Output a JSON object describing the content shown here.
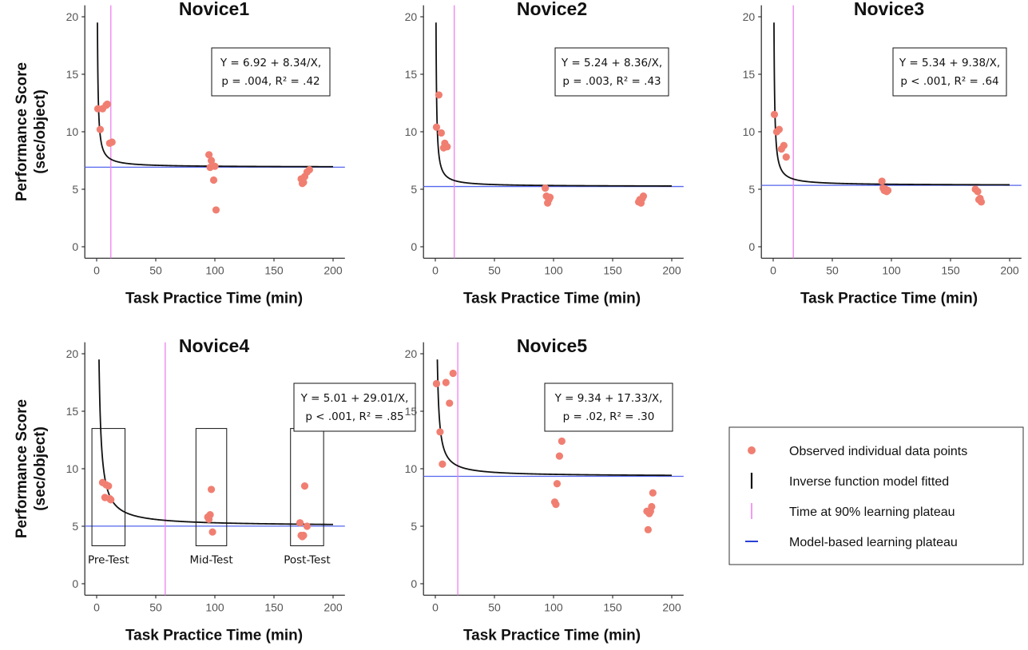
{
  "figure": {
    "xlabel": "Task Practice Time (min)",
    "ylabel_line1": "Performance Score",
    "ylabel_line2": "(sec/object)"
  },
  "legend": {
    "items": [
      {
        "label": "Observed individual data points",
        "kind": "point",
        "color": "#f07f72"
      },
      {
        "label": "Inverse function model fitted",
        "kind": "curve",
        "color": "#111111"
      },
      {
        "label": "Time at 90% learning plateau",
        "kind": "vline",
        "color": "#ee82ee"
      },
      {
        "label": "Model-based learning plateau",
        "kind": "hline",
        "color": "#2b3fd6"
      }
    ]
  },
  "colors": {
    "points": "#f07f72",
    "curve": "#111111",
    "plateau_time": "#ee82ee",
    "plateau_line": "#5566ee",
    "axis": "#333333"
  },
  "chart_data": [
    {
      "type": "scatter",
      "title": "Novice1",
      "xlabel": "Task Practice Time (min)",
      "ylabel": "Performance Score (sec/object)",
      "xlim": [
        -10,
        210
      ],
      "ylim": [
        -1,
        21
      ],
      "xticks": [
        0,
        50,
        100,
        150,
        200
      ],
      "yticks": [
        0,
        5,
        10,
        15,
        20
      ],
      "equation_line1": "Y = 6.92 + 8.34/X,",
      "equation_line2": "p = .004, R² = .42",
      "model": {
        "a": 6.92,
        "b": 8.34
      },
      "plateau_time": 12,
      "plateau_value": 6.92,
      "points": [
        [
          1,
          12.0
        ],
        [
          3,
          10.2
        ],
        [
          5,
          12.0
        ],
        [
          8,
          12.3
        ],
        [
          9,
          12.4
        ],
        [
          11,
          9.0
        ],
        [
          13,
          9.1
        ],
        [
          95,
          8.0
        ],
        [
          96,
          6.9
        ],
        [
          97,
          7.5
        ],
        [
          99,
          5.8
        ],
        [
          100,
          7.0
        ],
        [
          101,
          3.2
        ],
        [
          173,
          5.9
        ],
        [
          174,
          5.5
        ],
        [
          175,
          5.6
        ],
        [
          176,
          6.1
        ],
        [
          178,
          6.5
        ],
        [
          180,
          6.7
        ]
      ]
    },
    {
      "type": "scatter",
      "title": "Novice2",
      "xlabel": "Task Practice Time (min)",
      "ylabel": "Performance Score (sec/object)",
      "xlim": [
        -10,
        210
      ],
      "ylim": [
        -1,
        21
      ],
      "xticks": [
        0,
        50,
        100,
        150,
        200
      ],
      "yticks": [
        0,
        5,
        10,
        15,
        20
      ],
      "equation_line1": "Y = 5.24 + 8.36/X,",
      "equation_line2": "p = .003, R² = .43",
      "model": {
        "a": 5.24,
        "b": 8.36
      },
      "plateau_time": 16,
      "plateau_value": 5.24,
      "points": [
        [
          1,
          10.4
        ],
        [
          3,
          13.2
        ],
        [
          5,
          9.9
        ],
        [
          7,
          8.6
        ],
        [
          8,
          9.0
        ],
        [
          10,
          8.7
        ],
        [
          93,
          5.1
        ],
        [
          94,
          4.4
        ],
        [
          95,
          3.8
        ],
        [
          96,
          4.1
        ],
        [
          97,
          4.3
        ],
        [
          172,
          3.9
        ],
        [
          173,
          4.1
        ],
        [
          174,
          3.8
        ],
        [
          175,
          4.2
        ],
        [
          176,
          4.4
        ]
      ]
    },
    {
      "type": "scatter",
      "title": "Novice3",
      "xlabel": "Task Practice Time (min)",
      "ylabel": "Performance Score (sec/object)",
      "xlim": [
        -10,
        210
      ],
      "ylim": [
        -1,
        21
      ],
      "xticks": [
        0,
        50,
        100,
        150,
        200
      ],
      "yticks": [
        0,
        5,
        10,
        15,
        20
      ],
      "equation_line1": "Y = 5.34 + 9.38/X,",
      "equation_line2": "p < .001, R² = .64",
      "model": {
        "a": 5.34,
        "b": 9.38
      },
      "plateau_time": 17,
      "plateau_value": 5.34,
      "points": [
        [
          1,
          11.5
        ],
        [
          3,
          10.0
        ],
        [
          5,
          10.2
        ],
        [
          7,
          8.5
        ],
        [
          9,
          8.8
        ],
        [
          11,
          7.8
        ],
        [
          92,
          5.7
        ],
        [
          93,
          5.1
        ],
        [
          94,
          4.9
        ],
        [
          95,
          5.0
        ],
        [
          96,
          4.8
        ],
        [
          97,
          4.9
        ],
        [
          171,
          5.0
        ],
        [
          173,
          4.8
        ],
        [
          174,
          4.1
        ],
        [
          175,
          4.2
        ],
        [
          176,
          3.9
        ]
      ]
    },
    {
      "type": "scatter",
      "title": "Novice4",
      "xlabel": "Task Practice Time (min)",
      "ylabel": "Performance Score (sec/object)",
      "xlim": [
        -10,
        210
      ],
      "ylim": [
        -1,
        21
      ],
      "xticks": [
        0,
        50,
        100,
        150,
        200
      ],
      "yticks": [
        0,
        5,
        10,
        15,
        20
      ],
      "equation_line1": "Y = 5.01 + 29.01/X,",
      "equation_line2": "p < .001, R² = .85",
      "model": {
        "a": 5.01,
        "b": 29.01
      },
      "plateau_time": 58,
      "plateau_value": 5.01,
      "points": [
        [
          5,
          8.8
        ],
        [
          7,
          7.5
        ],
        [
          8,
          8.6
        ],
        [
          10,
          8.5
        ],
        [
          11,
          7.4
        ],
        [
          12,
          7.3
        ],
        [
          94,
          5.8
        ],
        [
          95,
          5.6
        ],
        [
          96,
          6.0
        ],
        [
          97,
          8.2
        ],
        [
          98,
          4.5
        ],
        [
          172,
          5.3
        ],
        [
          173,
          4.2
        ],
        [
          174,
          4.1
        ],
        [
          175,
          4.2
        ],
        [
          176,
          8.5
        ],
        [
          178,
          5.0
        ]
      ],
      "groups": [
        {
          "label": "Pre-Test",
          "x": [
            -4,
            24
          ],
          "y": [
            3.3,
            13.5
          ]
        },
        {
          "label": "Mid-Test",
          "x": [
            84,
            110
          ],
          "y": [
            3.3,
            13.5
          ]
        },
        {
          "label": "Post-Test",
          "x": [
            164,
            192
          ],
          "y": [
            3.3,
            13.5
          ]
        }
      ]
    },
    {
      "type": "scatter",
      "title": "Novice5",
      "xlabel": "Task Practice Time (min)",
      "ylabel": "Performance Score (sec/object)",
      "xlim": [
        -10,
        210
      ],
      "ylim": [
        -1,
        21
      ],
      "xticks": [
        0,
        50,
        100,
        150,
        200
      ],
      "yticks": [
        0,
        5,
        10,
        15,
        20
      ],
      "equation_line1": "Y = 9.34 + 17.33/X,",
      "equation_line2": "p = .02, R² = .30",
      "model": {
        "a": 9.34,
        "b": 17.33
      },
      "plateau_time": 19,
      "plateau_value": 9.34,
      "points": [
        [
          1,
          17.4
        ],
        [
          4,
          13.2
        ],
        [
          6,
          10.4
        ],
        [
          9,
          17.5
        ],
        [
          12,
          15.7
        ],
        [
          15,
          18.3
        ],
        [
          99,
          13.8
        ],
        [
          101,
          7.1
        ],
        [
          102,
          6.9
        ],
        [
          103,
          8.7
        ],
        [
          105,
          11.1
        ],
        [
          107,
          12.4
        ],
        [
          179,
          6.3
        ],
        [
          180,
          4.7
        ],
        [
          181,
          6.1
        ],
        [
          182,
          6.3
        ],
        [
          183,
          6.7
        ],
        [
          184,
          7.9
        ]
      ]
    }
  ]
}
